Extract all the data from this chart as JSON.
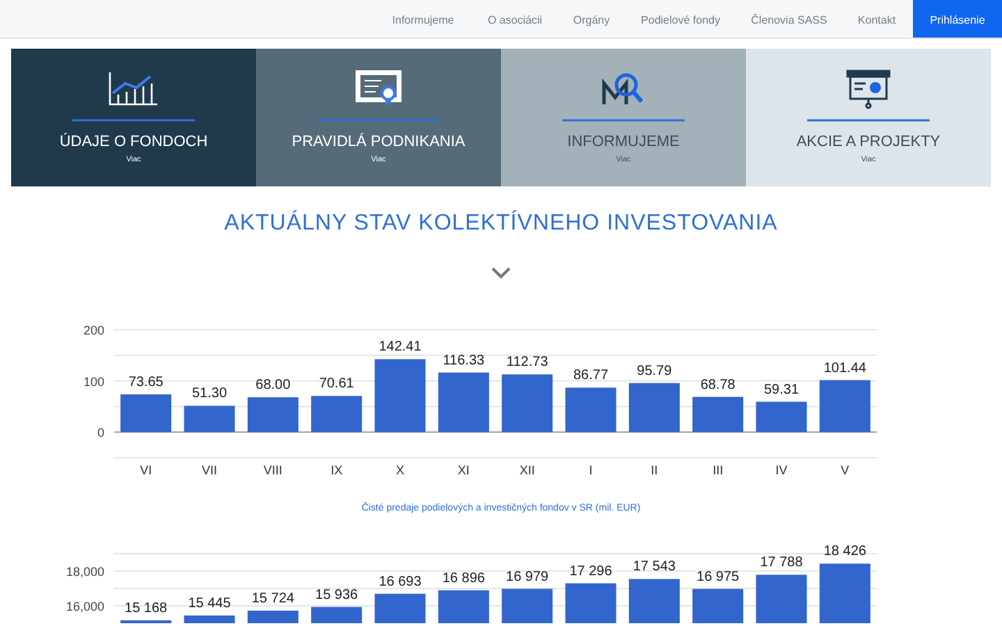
{
  "chart_data": [
    {
      "type": "other",
      "annotations": [
        "Informujeme",
        "O asociácii",
        "Orgány",
        "Podielové fondy",
        "Členovia SASS",
        "Kontakt",
        "Prihlásenie",
        "ÚDAJE O FONDOCH",
        "Viac",
        "PRAVIDLÁ PODNIKANIA",
        "Viac",
        "INFORMUJEME",
        "Viac",
        "AKCIE A PROJEKTY",
        "Viac"
      ]
    },
    {
      "type": "bar",
      "title": "AKTUÁLNY STAV KOLEKTÍVNEHO INVESTOVANIA",
      "categories": [
        "VI",
        "VII",
        "VIII",
        "IX",
        "X",
        "XI",
        "XII",
        "I",
        "II",
        "III",
        "IV",
        "V"
      ],
      "values": [
        73.65,
        51.3,
        68.0,
        70.61,
        142.41,
        116.33,
        112.73,
        86.77,
        95.79,
        68.78,
        59.31,
        101.44
      ],
      "value_labels": [
        "73.65",
        "51.30",
        "68.00",
        "70.61",
        "142.41",
        "116.33",
        "112.73",
        "86.77",
        "95.79",
        "68.78",
        "59.31",
        "101.44"
      ],
      "color": "#3366cc",
      "ylim": [
        -50,
        200
      ],
      "yticks": [
        {
          "value": -50,
          "label": null
        },
        0,
        {
          "value": 50,
          "label": null
        },
        100,
        {
          "value": 150,
          "label": null
        },
        200
      ],
      "grid": "y",
      "annotations": [
        "Čisté predaje podielových a investičných fondov v SR (mil. EUR)"
      ]
    },
    {
      "type": "bar",
      "categories": [
        null,
        null,
        null,
        null,
        null,
        null,
        null,
        null,
        null,
        null,
        null,
        null
      ],
      "values": [
        15168,
        15445,
        15724,
        15936,
        16693,
        16896,
        16979,
        17296,
        17543,
        16975,
        17788,
        18426
      ],
      "value_labels": [
        "15 168",
        "15 445",
        "15 724",
        "15 936",
        "16 693",
        "16 896",
        "16 979",
        "17 296",
        "17 543",
        "16 975",
        "17 788",
        "18 426"
      ],
      "color": "#3366cc",
      "ylim": [
        15000,
        19000
      ],
      "yticks": [
        {
          "value": 16000,
          "label": "16,000"
        },
        {
          "value": 17000,
          "label": null
        },
        {
          "value": 18000,
          "label": "18,000"
        },
        {
          "value": 19000,
          "label": null
        }
      ],
      "grid": "y"
    }
  ]
}
